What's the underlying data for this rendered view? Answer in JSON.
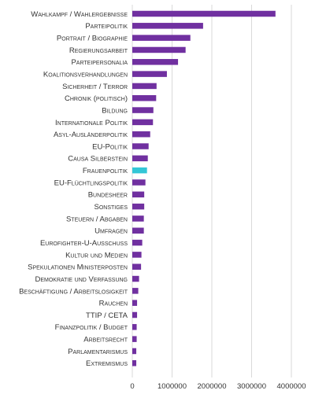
{
  "chart_data": {
    "type": "bar",
    "orientation": "horizontal",
    "categories": [
      "Wahlkampf / Wahlergebnisse",
      "Parteipolitik",
      "Portrait / Biographie",
      "Regierungsarbeit",
      "Parteipersonalia",
      "Koalitionsverhandlungen",
      "Sicherheit / Terror",
      "Chronik (politisch)",
      "Bildung",
      "Internationale Politik",
      "Asyl-Ausländerpolitik",
      "EU-Politik",
      "Causa Silberstein",
      "Frauenpolitik",
      "EU-Flüchtlingspolitik",
      "Bundesheer",
      "Sonstiges",
      "Steuern / Abgaben",
      "Umfragen",
      "Eurofighter-U-Ausschuss",
      "Kultur und Medien",
      "Spekulationen Ministerposten",
      "Demokratie und Verfassung",
      "Beschäftigung / Arbeitslosigkeit",
      "Rauchen",
      "TTIP / CETA",
      "Finanzpolitik / Budget",
      "Arbeitsrecht",
      "Parlamentarismus",
      "Extremismus"
    ],
    "values": [
      3600000,
      1780000,
      1460000,
      1340000,
      1150000,
      870000,
      610000,
      600000,
      530000,
      520000,
      450000,
      410000,
      390000,
      370000,
      330000,
      300000,
      300000,
      290000,
      290000,
      250000,
      230000,
      220000,
      170000,
      150000,
      120000,
      120000,
      110000,
      110000,
      100000,
      100000
    ],
    "highlight_category": "Frauenpolitik",
    "colors": {
      "default": "#7030a0",
      "highlight": "#33c6d6",
      "grid": "#d9d9d9"
    },
    "xlim": [
      0,
      4000000
    ],
    "x_ticks": [
      0,
      1000000,
      2000000,
      3000000,
      4000000
    ],
    "x_tick_labels": [
      "0",
      "1000000",
      "2000000",
      "3000000",
      "4000000"
    ],
    "grid": true,
    "title": "",
    "xlabel": "",
    "ylabel": ""
  }
}
